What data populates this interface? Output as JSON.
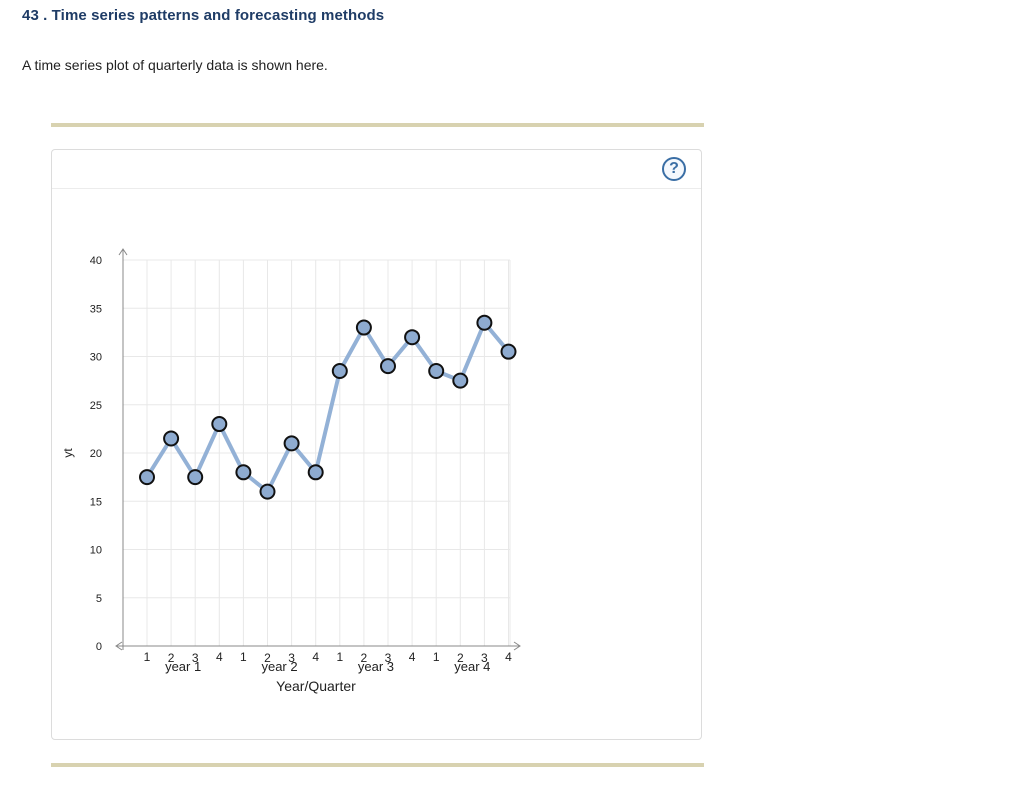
{
  "question": {
    "number_title": "43 . Time series patterns and forecasting methods",
    "intro": "A time series plot of quarterly data is shown here."
  },
  "help": {
    "label": "?"
  },
  "chart_data": {
    "type": "line",
    "title": "",
    "xlabel": "Year/Quarter",
    "ylabel": "yt",
    "ylim": [
      0,
      40
    ],
    "yticks": [
      0,
      5,
      10,
      15,
      20,
      25,
      30,
      35,
      40
    ],
    "grid": true,
    "quarter_labels": [
      "1",
      "2",
      "3",
      "4",
      "1",
      "2",
      "3",
      "4",
      "1",
      "2",
      "3",
      "4",
      "1",
      "2",
      "3",
      "4"
    ],
    "year_labels": [
      "year 1",
      "year 2",
      "year 3",
      "year 4"
    ],
    "series": [
      {
        "values": [
          17.5,
          21.5,
          17.5,
          23,
          18,
          16,
          21,
          18,
          28.5,
          33,
          29,
          32,
          28.5,
          27.5,
          33.5,
          30.5
        ]
      }
    ],
    "colors": {
      "line": "#93b1d6",
      "marker_fill": "#8eabd0",
      "marker_stroke": "#111111",
      "grid": "#e8e8e8",
      "axis": "#888888"
    }
  }
}
